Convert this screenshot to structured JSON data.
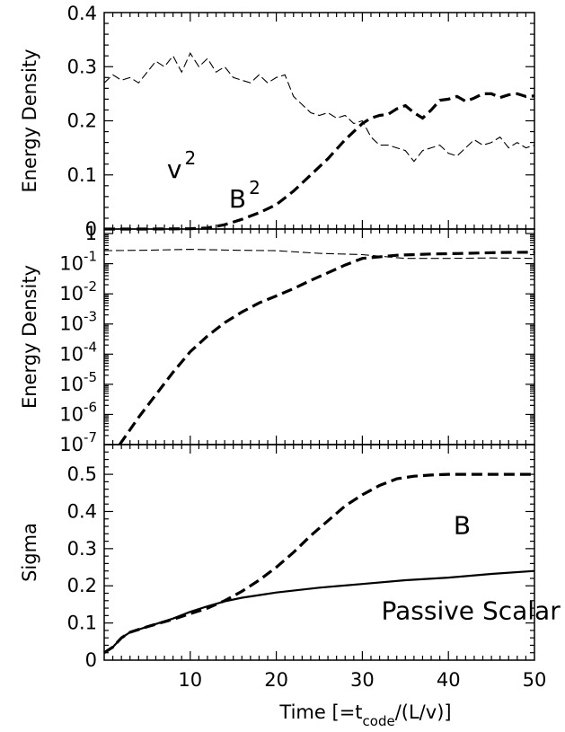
{
  "xlabel": {
    "main": "Time",
    "open": "[=t",
    "sub": "code",
    "close": "/(L/v)]"
  },
  "chart_data": [
    {
      "type": "line",
      "panel": "top",
      "ylabel": "Energy Density",
      "xlim": [
        0,
        50
      ],
      "ylim": [
        0,
        0.4
      ],
      "x_ticks": [
        10,
        20,
        30,
        40,
        50
      ],
      "y_ticks": [
        {
          "value": 0,
          "label": "0"
        },
        {
          "value": 0.1,
          "label": "0.1"
        },
        {
          "value": 0.2,
          "label": "0.2"
        },
        {
          "value": 0.3,
          "label": "0.3"
        },
        {
          "value": 0.4,
          "label": "0.4"
        }
      ],
      "annotations": [
        {
          "label": "v",
          "sup": "2",
          "x": 7.3,
          "y": 0.095
        },
        {
          "label": "B",
          "sup": "2",
          "x": 14.5,
          "y": 0.04
        }
      ],
      "series": [
        {
          "style": "dashed-thick",
          "x": [
            0,
            5,
            10,
            12,
            14,
            16,
            18,
            20,
            22,
            24,
            26,
            28,
            30,
            31,
            32,
            33,
            34,
            35,
            36,
            37,
            38,
            39,
            40,
            41,
            42,
            43,
            44,
            45,
            46,
            47,
            48,
            49,
            50
          ],
          "y": [
            0,
            0,
            0.0005,
            0.002,
            0.008,
            0.018,
            0.03,
            0.045,
            0.07,
            0.1,
            0.13,
            0.165,
            0.195,
            0.205,
            0.21,
            0.212,
            0.222,
            0.228,
            0.215,
            0.205,
            0.22,
            0.238,
            0.24,
            0.245,
            0.236,
            0.242,
            0.25,
            0.25,
            0.243,
            0.248,
            0.25,
            0.245,
            0.246
          ]
        },
        {
          "style": "dashed-thin",
          "x": [
            0,
            1,
            2,
            3,
            4,
            5,
            6,
            7,
            8,
            9,
            10,
            11,
            12,
            13,
            14,
            15,
            16,
            17,
            18,
            19,
            20,
            21,
            22,
            23,
            24,
            25,
            26,
            27,
            28,
            29,
            30,
            31,
            32,
            33,
            34,
            35,
            36,
            37,
            38,
            39,
            40,
            41,
            42,
            43,
            44,
            45,
            46,
            47,
            48,
            49,
            50
          ],
          "y": [
            0.27,
            0.285,
            0.275,
            0.28,
            0.27,
            0.29,
            0.31,
            0.3,
            0.32,
            0.29,
            0.325,
            0.3,
            0.315,
            0.29,
            0.3,
            0.28,
            0.275,
            0.27,
            0.285,
            0.27,
            0.28,
            0.285,
            0.245,
            0.23,
            0.215,
            0.21,
            0.215,
            0.205,
            0.21,
            0.195,
            0.2,
            0.17,
            0.155,
            0.155,
            0.15,
            0.145,
            0.125,
            0.145,
            0.15,
            0.155,
            0.14,
            0.135,
            0.15,
            0.165,
            0.155,
            0.16,
            0.17,
            0.15,
            0.16,
            0.15,
            0.155
          ]
        }
      ]
    },
    {
      "type": "line",
      "panel": "middle",
      "ylabel": "Energy Density",
      "xlim": [
        0,
        50
      ],
      "ylim_log10": [
        -7,
        0.15
      ],
      "yscale": "log",
      "y_ticks": [
        {
          "exp": 0,
          "label": "1"
        },
        {
          "exp": -1,
          "label": "10",
          "sup": "-1"
        },
        {
          "exp": -2,
          "label": "10",
          "sup": "-2"
        },
        {
          "exp": -3,
          "label": "10",
          "sup": "-3"
        },
        {
          "exp": -4,
          "label": "10",
          "sup": "-4"
        },
        {
          "exp": -5,
          "label": "10",
          "sup": "-5"
        },
        {
          "exp": -6,
          "label": "10",
          "sup": "-6"
        },
        {
          "exp": -7,
          "label": "10",
          "sup": "-7"
        }
      ],
      "series": [
        {
          "style": "dashed-thick",
          "x": [
            1.8,
            4,
            6,
            8,
            10,
            12,
            14,
            16,
            18,
            20,
            22,
            24,
            26,
            28,
            30,
            34,
            38,
            42,
            46,
            50
          ],
          "y": [
            1e-07,
            8e-07,
            4.5e-06,
            2.5e-05,
            0.00012,
            0.0004,
            0.0011,
            0.0025,
            0.005,
            0.0085,
            0.015,
            0.028,
            0.05,
            0.09,
            0.15,
            0.19,
            0.21,
            0.22,
            0.235,
            0.24
          ]
        },
        {
          "style": "dashed-thin",
          "x": [
            0,
            5,
            10,
            15,
            20,
            25,
            30,
            35,
            40,
            45,
            50
          ],
          "y": [
            0.27,
            0.28,
            0.3,
            0.28,
            0.27,
            0.22,
            0.2,
            0.15,
            0.15,
            0.155,
            0.15
          ]
        }
      ]
    },
    {
      "type": "line",
      "panel": "bottom",
      "ylabel": "Sigma",
      "xlim": [
        0,
        50
      ],
      "ylim": [
        0,
        0.58
      ],
      "y_ticks": [
        {
          "value": 0,
          "label": "0"
        },
        {
          "value": 0.1,
          "label": "0.1"
        },
        {
          "value": 0.2,
          "label": "0.2"
        },
        {
          "value": 0.3,
          "label": "0.3"
        },
        {
          "value": 0.4,
          "label": "0.4"
        },
        {
          "value": 0.5,
          "label": "0.5"
        }
      ],
      "x_ticks": [
        {
          "value": 10,
          "label": "10"
        },
        {
          "value": 20,
          "label": "20"
        },
        {
          "value": 30,
          "label": "30"
        },
        {
          "value": 40,
          "label": "40"
        },
        {
          "value": 50,
          "label": "50"
        }
      ],
      "annotations": [
        {
          "label": "B",
          "x": 40.6,
          "y": 0.34
        },
        {
          "label": "Passive Scalar",
          "x": 32.2,
          "y": 0.11
        }
      ],
      "series": [
        {
          "style": "dashed-thick",
          "x": [
            0,
            1,
            2,
            3,
            5,
            8,
            10,
            12,
            14,
            16,
            18,
            20,
            22,
            24,
            26,
            28,
            30,
            32,
            34,
            36,
            38,
            40,
            42,
            45,
            50
          ],
          "y": [
            0.02,
            0.035,
            0.06,
            0.075,
            0.09,
            0.11,
            0.125,
            0.14,
            0.16,
            0.185,
            0.215,
            0.25,
            0.29,
            0.335,
            0.375,
            0.415,
            0.445,
            0.47,
            0.488,
            0.495,
            0.498,
            0.5,
            0.5,
            0.5,
            0.5
          ]
        },
        {
          "style": "solid",
          "x": [
            0,
            1,
            2,
            3,
            5,
            8,
            10,
            12,
            14,
            16,
            18,
            20,
            25,
            30,
            35,
            40,
            45,
            50
          ],
          "y": [
            0.02,
            0.035,
            0.06,
            0.075,
            0.09,
            0.112,
            0.13,
            0.145,
            0.158,
            0.168,
            0.175,
            0.182,
            0.195,
            0.205,
            0.215,
            0.222,
            0.232,
            0.24
          ]
        }
      ]
    }
  ]
}
